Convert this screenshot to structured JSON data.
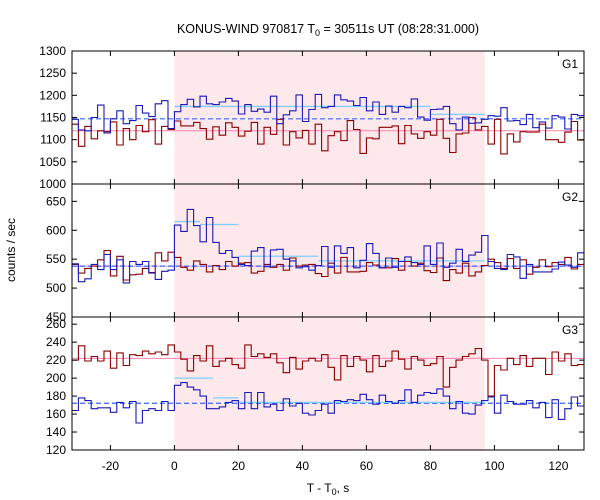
{
  "chart_data": {
    "type": "line",
    "title": {
      "main": "KONUS-WIND 970817 T",
      "sub": "0",
      "rest": " = 30511s UT (08:28:31.000)"
    },
    "xlabel": {
      "main": "T - T",
      "sub": "0",
      "rest": ", s"
    },
    "ylabel": "counts / sec",
    "xlim": [
      -32,
      128
    ],
    "xticks": [
      -20,
      0,
      20,
      40,
      60,
      80,
      100,
      120
    ],
    "highlight_interval": [
      0,
      97
    ],
    "colors": {
      "series_a": "#8b0000",
      "series_b": "#1a1ab4",
      "bg_fit_a": "#ff80b0",
      "bg_fit_b": "#3a66ff",
      "burst_fit": "#7fd0ff",
      "shade": "#fde8ec"
    },
    "panels": [
      {
        "label": "G1",
        "ylim": [
          1000,
          1300
        ],
        "yticks": [
          1000,
          1050,
          1100,
          1150,
          1200,
          1250,
          1300
        ],
        "bg_a": 1120,
        "bg_b": 1147,
        "burst_b": [
          [
            0,
            20,
            1175
          ],
          [
            20,
            80,
            1175
          ],
          [
            80,
            97,
            1157
          ]
        ],
        "series": [
          {
            "name": "",
            "x0": -32,
            "dt": 2,
            "values": [
              1135,
              1085,
              1130,
              1102,
              1120,
              1118,
              1140,
              1088,
              1125,
              1100,
              1132,
              1118,
              1145,
              1090,
              1130,
              1123,
              1142,
              1131,
              1131,
              1139,
              1125,
              1101,
              1129,
              1110,
              1138,
              1128,
              1108,
              1119,
              1139,
              1090,
              1128,
              1112,
              1146,
              1088,
              1118,
              1104,
              1121,
              1090,
              1135,
              1075,
              1109,
              1118,
              1098,
              1143,
              1123,
              1069,
              1104,
              1102,
              1128,
              1128,
              1131,
              1091,
              1132,
              1113,
              1103,
              1118,
              1110,
              1146,
              1103,
              1071,
              1113,
              1115,
              1150,
              1122,
              1130,
              1090,
              1146,
              1068,
              1113,
              1095,
              1118,
              1117,
              1117,
              1135,
              1100,
              1100,
              1094,
              1117,
              1141,
              1099
            ]
          },
          {
            "name": "",
            "x0": -32,
            "dt": 2,
            "values": [
              1146,
              1122,
              1120,
              1150,
              1178,
              1115,
              1147,
              1165,
              1136,
              1143,
              1177,
              1160,
              1152,
              1181,
              1188,
              1125,
              1163,
              1179,
              1191,
              1174,
              1198,
              1181,
              1179,
              1185,
              1193,
              1187,
              1158,
              1179,
              1164,
              1169,
              1162,
              1198,
              1136,
              1156,
              1165,
              1201,
              1141,
              1168,
              1202,
              1172,
              1175,
              1201,
              1190,
              1187,
              1177,
              1195,
              1165,
              1185,
              1157,
              1176,
              1162,
              1175,
              1172,
              1192,
              1151,
              1144,
              1168,
              1169,
              1175,
              1136,
              1122,
              1151,
              1137,
              1138,
              1146,
              1154,
              1153,
              1172,
              1142,
              1143,
              1134,
              1157,
              1127,
              1140,
              1126,
              1154,
              1151,
              1124,
              1157,
              1154
            ]
          }
        ]
      },
      {
        "label": "G2",
        "ylim": [
          450,
          680
        ],
        "yticks": [
          450,
          500,
          550,
          600,
          650
        ],
        "bg_a": 538,
        "bg_b": 538,
        "burst_b": [
          [
            0,
            8,
            615
          ],
          [
            8,
            20,
            610
          ],
          [
            20,
            45,
            555
          ],
          [
            45,
            97,
            547
          ]
        ],
        "series": [
          {
            "name": "",
            "x0": -32,
            "dt": 2,
            "values": [
              541,
              526,
              534,
              538,
              549,
              565,
              521,
              555,
              514,
              523,
              524,
              534,
              527,
              561,
              547,
              562,
              553,
              536,
              531,
              547,
              541,
              528,
              539,
              532,
              546,
              538,
              543,
              544,
              526,
              529,
              541,
              536,
              541,
              531,
              552,
              538,
              540,
              541,
              525,
              520,
              543,
              526,
              553,
              528,
              528,
              529,
              544,
              540,
              535,
              535,
              551,
              531,
              546,
              538,
              543,
              530,
              527,
              552,
              513,
              532,
              526,
              543,
              521,
              528,
              539,
              550,
              544,
              534,
              551,
              534,
              549,
              524,
              536,
              549,
              537,
              544,
              541,
              553,
              533,
              541
            ]
          },
          {
            "name": "",
            "x0": -32,
            "dt": 2,
            "values": [
              542,
              511,
              516,
              541,
              532,
              558,
              532,
              549,
              509,
              546,
              541,
              546,
              526,
              515,
              529,
              531,
              609,
              598,
              636,
              608,
              580,
              622,
              579,
              560,
              565,
              553,
              541,
              539,
              564,
              570,
              537,
              566,
              567,
              550,
              547,
              535,
              537,
              531,
              539,
              572,
              536,
              573,
              560,
              570,
              535,
              548,
              577,
              560,
              535,
              552,
              536,
              546,
              554,
              544,
              541,
              573,
              541,
              578,
              536,
              543,
              567,
              546,
              557,
              562,
              591,
              546,
              534,
              532,
              558,
              554,
              517,
              541,
              528,
              528,
              528,
              533,
              545,
              540,
              536,
              561
            ]
          }
        ]
      },
      {
        "label": "G3",
        "ylim": [
          120,
          268
        ],
        "yticks": [
          120,
          140,
          160,
          180,
          200,
          220,
          240,
          260
        ],
        "bg_a": 222,
        "bg_b": 172,
        "burst_b": [
          [
            0,
            12,
            200
          ],
          [
            12,
            20,
            178
          ],
          [
            20,
            97,
            173
          ]
        ],
        "series": [
          {
            "name": "",
            "x0": -32,
            "dt": 2,
            "values": [
              220,
              236,
              219,
              224,
              219,
              230,
              211,
              228,
              214,
              226,
              225,
              230,
              227,
              229,
              226,
              237,
              229,
              221,
              208,
              225,
              219,
              236,
              213,
              219,
              222,
              215,
              211,
              237,
              224,
              227,
              223,
              227,
              217,
              206,
              223,
              210,
              219,
              222,
              219,
              226,
              212,
              198,
              225,
              213,
              224,
              220,
              207,
              225,
              213,
              219,
              230,
              221,
              210,
              224,
              220,
              214,
              216,
              224,
              190,
              212,
              220,
              224,
              227,
              233,
              220,
              180,
              214,
              209,
              222,
              215,
              225,
              213,
              222,
              222,
              204,
              229,
              219,
              227,
              214,
              215
            ]
          },
          {
            "name": "",
            "x0": -32,
            "dt": 2,
            "values": [
              164,
              178,
              175,
              166,
              167,
              167,
              162,
              173,
              167,
              174,
              150,
              164,
              166,
              164,
              174,
              164,
              192,
              195,
              190,
              187,
              180,
              166,
              166,
              168,
              173,
              175,
              166,
              184,
              166,
              184,
              168,
              171,
              164,
              177,
              169,
              172,
              161,
              159,
              164,
              171,
              161,
              175,
              174,
              176,
              175,
              182,
              176,
              171,
              181,
              174,
              172,
              175,
              187,
              173,
              181,
              184,
              183,
              188,
              180,
              166,
              174,
              161,
              160,
              170,
              175,
              179,
              161,
              181,
              174,
              171,
              171,
              175,
              167,
              173,
              156,
              176,
              154,
              166,
              179,
              169
            ]
          }
        ]
      }
    ]
  }
}
